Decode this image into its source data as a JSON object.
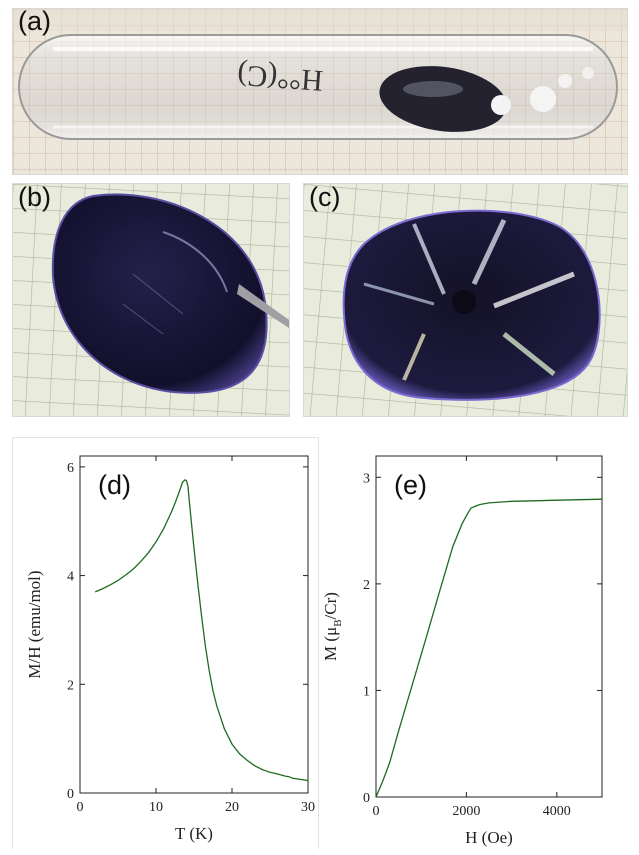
{
  "panels": {
    "a": {
      "label": "(a)",
      "tube_text": "H°°(C)"
    },
    "b": {
      "label": "(b)"
    },
    "c": {
      "label": "(c)"
    }
  },
  "colors": {
    "curve": "#1f6b1f",
    "grid_paper": "#e9ecdc",
    "grid_line": "#a9b59a",
    "crystal": "#161433",
    "crystal_edge": "#4a3f8a"
  },
  "chart_data": [
    {
      "type": "line",
      "panel_label": "(d)",
      "xlabel": "T (K)",
      "ylabel": "M/H (emu/mol)",
      "xlim": [
        0,
        30
      ],
      "ylim": [
        0,
        6.2
      ],
      "xticks": [
        0,
        10,
        20,
        30
      ],
      "yticks": [
        0,
        2,
        4,
        6
      ],
      "grid": false,
      "series": [
        {
          "x": [
            2,
            3,
            4,
            5,
            6,
            7,
            8,
            9,
            10,
            11,
            12,
            12.5,
            13,
            13.5,
            13.8,
            14.0,
            14.2,
            14.5,
            15,
            15.5,
            16,
            16.5,
            17,
            17.5,
            18,
            19,
            20,
            21,
            22,
            23,
            24,
            25,
            26,
            27,
            27.5,
            28,
            29,
            30
          ],
          "y": [
            3.7,
            3.76,
            3.83,
            3.91,
            4.01,
            4.12,
            4.26,
            4.42,
            4.62,
            4.86,
            5.16,
            5.33,
            5.52,
            5.72,
            5.76,
            5.75,
            5.65,
            5.2,
            4.5,
            3.85,
            3.25,
            2.7,
            2.25,
            1.88,
            1.6,
            1.18,
            0.9,
            0.72,
            0.6,
            0.5,
            0.43,
            0.38,
            0.35,
            0.31,
            0.3,
            0.27,
            0.25,
            0.23
          ]
        }
      ]
    },
    {
      "type": "line",
      "panel_label": "(e)",
      "xlabel": "H (Oe)",
      "ylabel_main": "M (μ",
      "ylabel_sub": "B",
      "ylabel_end": "/Cr)",
      "xlim": [
        0,
        5000
      ],
      "ylim": [
        0,
        3.2
      ],
      "xticks": [
        0,
        2000,
        4000
      ],
      "yticks": [
        0,
        1,
        2,
        3
      ],
      "grid": false,
      "series": [
        {
          "x": [
            0,
            60,
            150,
            300,
            500,
            800,
            1100,
            1400,
            1700,
            1900,
            2000,
            2100,
            2200,
            2300,
            2500,
            3000,
            3500,
            4000,
            4500,
            5000
          ],
          "y": [
            0,
            0.06,
            0.15,
            0.32,
            0.62,
            1.05,
            1.48,
            1.92,
            2.35,
            2.56,
            2.64,
            2.71,
            2.73,
            2.745,
            2.76,
            2.775,
            2.78,
            2.785,
            2.79,
            2.795
          ]
        }
      ]
    }
  ]
}
